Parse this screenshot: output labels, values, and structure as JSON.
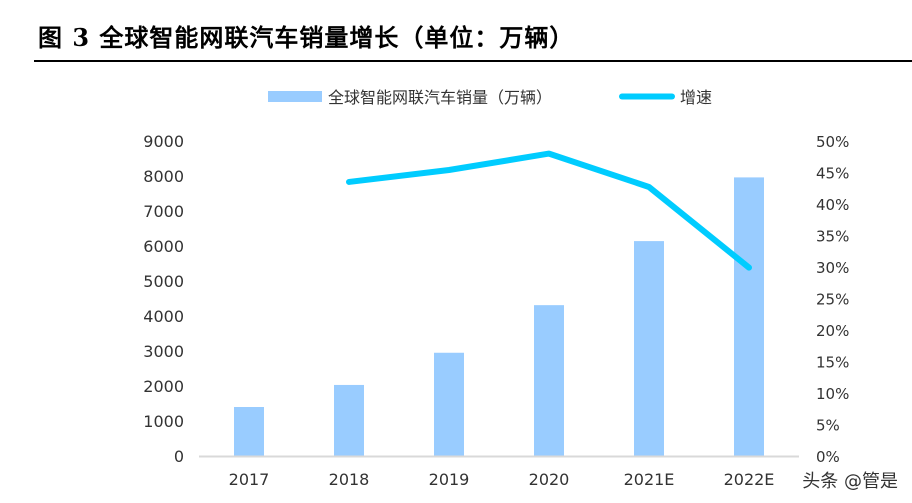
{
  "title": "图 3 全球智能网联汽车销量增长（单位：万辆）",
  "watermark": "头条 @管是",
  "chart_data": {
    "type": "bar+line",
    "title": "图 3 全球智能网联汽车销量增长（单位：万辆）",
    "categories": [
      "2017",
      "2018",
      "2019",
      "2020",
      "2021E",
      "2022E"
    ],
    "series": [
      {
        "name": "全球智能网联汽车销量（万辆）",
        "type": "bar",
        "axis": "left",
        "color": "#99CCFF",
        "values": [
          1400,
          2030,
          2950,
          4310,
          6140,
          7960
        ]
      },
      {
        "name": "增速",
        "type": "line",
        "axis": "right",
        "color": "#00CCFF",
        "values": [
          null,
          0.435,
          0.454,
          0.48,
          0.427,
          0.299
        ]
      }
    ],
    "left_axis": {
      "min": 0,
      "max": 9000,
      "ticks": [
        "0",
        "1000",
        "2000",
        "3000",
        "4000",
        "5000",
        "6000",
        "7000",
        "8000",
        "9000"
      ]
    },
    "right_axis": {
      "min": 0,
      "max": 0.5,
      "ticks": [
        "0%",
        "5%",
        "10%",
        "15%",
        "20%",
        "25%",
        "30%",
        "35%",
        "40%",
        "45%",
        "50%"
      ]
    },
    "legend": "top",
    "grid": false
  }
}
